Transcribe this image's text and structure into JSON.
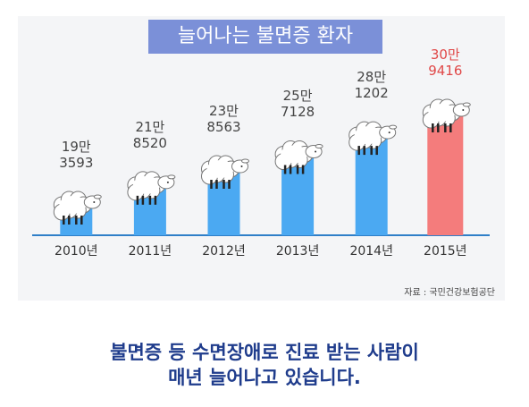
{
  "chart_data": {
    "type": "bar",
    "title": "늘어나는 불면증 환자",
    "categories": [
      "2010년",
      "2011년",
      "2012년",
      "2013년",
      "2014년",
      "2015년"
    ],
    "values": [
      193593,
      218520,
      238563,
      257128,
      281202,
      309416
    ],
    "value_labels": [
      "19만\n3593",
      "21만\n8520",
      "23만\n8563",
      "25만\n7128",
      "28만\n1202",
      "30만\n9416"
    ],
    "colors": [
      "#4ba9f2",
      "#4ba9f2",
      "#4ba9f2",
      "#4ba9f2",
      "#4ba9f2",
      "#f47c7c"
    ],
    "source": "자료 : 국민건강보험공단"
  },
  "caption": "불면증 등 수면장애로 진료 받는 사람이\n매년 늘어나고 있습니다."
}
